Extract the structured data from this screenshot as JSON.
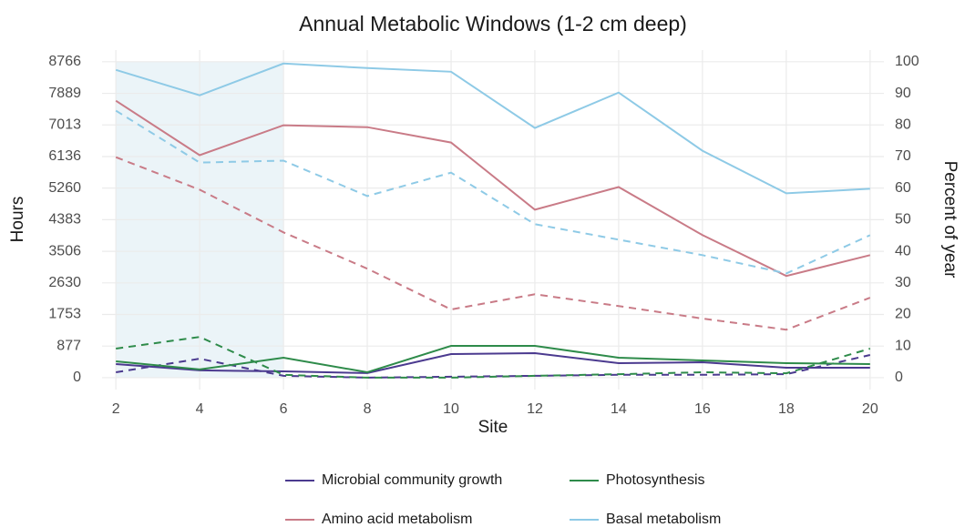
{
  "chart_data": {
    "type": "line",
    "title": "Annual Metabolic Windows (1-2 cm deep)",
    "x_label": "Site",
    "y_label": "Hours",
    "y2_label": "Percent of year",
    "x": [
      2,
      4,
      6,
      8,
      10,
      12,
      14,
      16,
      18,
      20
    ],
    "xlim": [
      1.67,
      20.33
    ],
    "xticks": [
      2,
      4,
      6,
      8,
      10,
      12,
      14,
      16,
      18,
      20
    ],
    "ylim": [
      -330,
      9090
    ],
    "yticks": [
      0,
      877,
      1753,
      2630,
      3506,
      4383,
      5260,
      6136,
      7013,
      7889,
      8766
    ],
    "y2lim": [
      -3.76,
      103.7
    ],
    "y2ticks": [
      0,
      10,
      20,
      30,
      40,
      50,
      60,
      70,
      80,
      90,
      100
    ],
    "grid": true,
    "highlight": {
      "x": [
        2,
        6
      ],
      "y": [
        0,
        8766
      ],
      "color": "#deecf4"
    },
    "series": [
      {
        "name": "Microbial community growth",
        "color": "#4b3a8f",
        "values": [
          378,
          202,
          176,
          126,
          655,
          680,
          403,
          428,
          277,
          277
        ],
        "y2_values": [
          1.7,
          6.0,
          0.6,
          0,
          0.3,
          0.6,
          0.9,
          0.9,
          1.1,
          7.2
        ]
      },
      {
        "name": "Photosynthesis",
        "color": "#2e8b4a",
        "values": [
          453,
          227,
          554,
          151,
          882,
          882,
          554,
          479,
          403,
          378
        ],
        "y2_values": [
          9.2,
          12.9,
          0.9,
          0,
          0,
          0.6,
          1.1,
          1.7,
          1.4,
          9.2
        ]
      },
      {
        "name": "Amino acid metabolism",
        "color": "#c97b87",
        "values": [
          7683,
          6172,
          7003,
          6952,
          6524,
          4660,
          5290,
          3955,
          2821,
          3401
        ],
        "y2_values": [
          69.8,
          59.5,
          46.0,
          34.5,
          21.6,
          26.4,
          22.7,
          18.7,
          15.2,
          25.3
        ]
      },
      {
        "name": "Basal metabolism",
        "color": "#8ecae6",
        "values": [
          8539,
          7834,
          8716,
          8590,
          8489,
          6927,
          7910,
          6298,
          5114,
          5240
        ],
        "y2_values": [
          84.5,
          68.1,
          68.7,
          57.5,
          64.9,
          48.6,
          43.7,
          38.8,
          33.0,
          45.1
        ]
      }
    ]
  }
}
